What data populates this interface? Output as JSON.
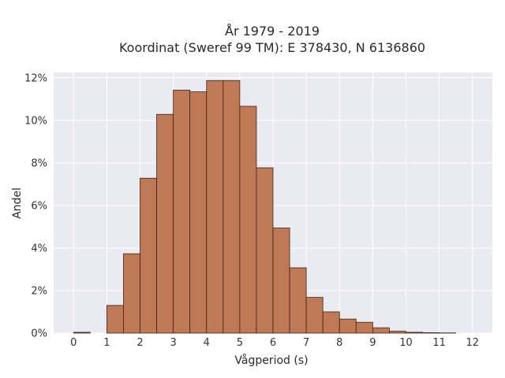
{
  "chart_data": {
    "type": "bar",
    "title_line1": "År 1979 - 2019",
    "title_line2": "Koordinat (Sweref 99 TM): E 378430, N 6136860",
    "xlabel": "Vågperiod (s)",
    "ylabel": "Andel",
    "bin_width": 0.5,
    "xlim": [
      -0.6,
      12.6
    ],
    "ylim": [
      0,
      0.1225
    ],
    "x_ticks": [
      0,
      1,
      2,
      3,
      4,
      5,
      6,
      7,
      8,
      9,
      10,
      11,
      12
    ],
    "x_tick_labels": [
      "0",
      "1",
      "2",
      "3",
      "4",
      "5",
      "6",
      "7",
      "8",
      "9",
      "10",
      "11",
      "12"
    ],
    "y_ticks": [
      0,
      0.02,
      0.04,
      0.06,
      0.08,
      0.1,
      0.12
    ],
    "y_tick_labels": [
      "0%",
      "2%",
      "4%",
      "6%",
      "8%",
      "10%",
      "12%"
    ],
    "grid": true,
    "bar_color": "#bf7a55",
    "edge_color": "#3d2416",
    "plot_background": "#eaeaf2",
    "bins": [
      {
        "x0": 0.0,
        "x1": 0.5,
        "value": 0.0004
      },
      {
        "x0": 0.5,
        "x1": 1.0,
        "value": 0.0
      },
      {
        "x0": 1.0,
        "x1": 1.5,
        "value": 0.013
      },
      {
        "x0": 1.5,
        "x1": 2.0,
        "value": 0.0373
      },
      {
        "x0": 2.0,
        "x1": 2.5,
        "value": 0.0728
      },
      {
        "x0": 2.5,
        "x1": 3.0,
        "value": 0.1028
      },
      {
        "x0": 3.0,
        "x1": 3.5,
        "value": 0.1142
      },
      {
        "x0": 3.5,
        "x1": 4.0,
        "value": 0.1134
      },
      {
        "x0": 4.0,
        "x1": 4.5,
        "value": 0.1187
      },
      {
        "x0": 4.5,
        "x1": 5.0,
        "value": 0.1187
      },
      {
        "x0": 5.0,
        "x1": 5.5,
        "value": 0.1066
      },
      {
        "x0": 5.5,
        "x1": 6.0,
        "value": 0.0777
      },
      {
        "x0": 6.0,
        "x1": 6.5,
        "value": 0.0494
      },
      {
        "x0": 6.5,
        "x1": 7.0,
        "value": 0.0307
      },
      {
        "x0": 7.0,
        "x1": 7.5,
        "value": 0.0168
      },
      {
        "x0": 7.5,
        "x1": 8.0,
        "value": 0.01
      },
      {
        "x0": 8.0,
        "x1": 8.5,
        "value": 0.0066
      },
      {
        "x0": 8.5,
        "x1": 9.0,
        "value": 0.0051
      },
      {
        "x0": 9.0,
        "x1": 9.5,
        "value": 0.0025
      },
      {
        "x0": 9.5,
        "x1": 10.0,
        "value": 0.0009
      },
      {
        "x0": 10.0,
        "x1": 10.5,
        "value": 0.0004
      },
      {
        "x0": 10.5,
        "x1": 11.0,
        "value": 0.0002
      },
      {
        "x0": 11.0,
        "x1": 11.5,
        "value": 0.0001
      }
    ]
  }
}
